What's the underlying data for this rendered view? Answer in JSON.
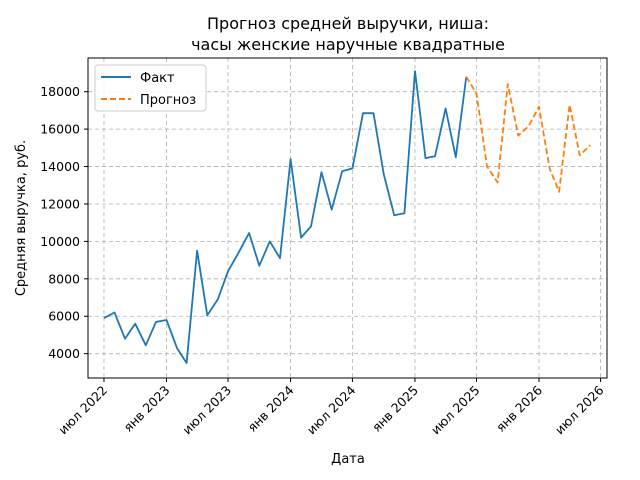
{
  "chart_data": {
    "type": "line",
    "title": [
      "Прогноз средней выручки, ниша:",
      "часы женские наручные квадратные"
    ],
    "xlabel": "Дата",
    "ylabel": "Средняя выручка, руб.",
    "x_range": [
      "2022-05-15",
      "2026-07-20"
    ],
    "ylim": [
      2700,
      19800
    ],
    "grid": true,
    "legend_position": "top-left",
    "x_ticks": [
      {
        "date": "2022-07-01",
        "label": "июл 2022"
      },
      {
        "date": "2023-01-01",
        "label": "янв 2023"
      },
      {
        "date": "2023-07-01",
        "label": "июл 2023"
      },
      {
        "date": "2024-01-01",
        "label": "янв 2024"
      },
      {
        "date": "2024-07-01",
        "label": "июл 2024"
      },
      {
        "date": "2025-01-01",
        "label": "янв 2025"
      },
      {
        "date": "2025-07-01",
        "label": "июл 2025"
      },
      {
        "date": "2026-01-01",
        "label": "янв 2026"
      },
      {
        "date": "2026-07-01",
        "label": "июл 2026"
      }
    ],
    "y_ticks": [
      4000,
      6000,
      8000,
      10000,
      12000,
      14000,
      16000,
      18000
    ],
    "series": [
      {
        "name": "Факт",
        "color": "#1f77b4",
        "style": "solid",
        "x": [
          "2022-07-01",
          "2022-08-01",
          "2022-09-01",
          "2022-10-01",
          "2022-11-01",
          "2022-12-01",
          "2023-01-01",
          "2023-02-01",
          "2023-03-01",
          "2023-04-01",
          "2023-05-01",
          "2023-06-01",
          "2023-07-01",
          "2023-08-01",
          "2023-09-01",
          "2023-10-01",
          "2023-11-01",
          "2023-12-01",
          "2024-01-01",
          "2024-02-01",
          "2024-03-01",
          "2024-04-01",
          "2024-05-01",
          "2024-06-01",
          "2024-07-01",
          "2024-08-01",
          "2024-09-01",
          "2024-10-01",
          "2024-11-01",
          "2024-12-01",
          "2025-01-01",
          "2025-02-01",
          "2025-03-01",
          "2025-04-01",
          "2025-05-01",
          "2025-06-01"
        ],
        "y": [
          5900,
          6200,
          4800,
          5600,
          4450,
          5700,
          5800,
          4300,
          3500,
          9500,
          6050,
          6900,
          8400,
          9400,
          10450,
          8700,
          10000,
          9100,
          14400,
          10200,
          10800,
          13700,
          11700,
          13750,
          13900,
          16850,
          16850,
          13600,
          11400,
          11500,
          19100,
          14450,
          14550,
          17100,
          14500,
          18800
        ]
      },
      {
        "name": "Прогноз",
        "color": "#ff7f0e",
        "style": "dashed",
        "x": [
          "2025-06-01",
          "2025-07-01",
          "2025-08-01",
          "2025-09-01",
          "2025-10-01",
          "2025-11-01",
          "2025-12-01",
          "2026-01-01",
          "2026-02-01",
          "2026-03-01",
          "2026-04-01",
          "2026-05-01",
          "2026-06-01"
        ],
        "y": [
          18800,
          17900,
          14000,
          13150,
          18400,
          15650,
          16150,
          17200,
          13900,
          12650,
          17300,
          14600,
          15150
        ]
      }
    ]
  }
}
